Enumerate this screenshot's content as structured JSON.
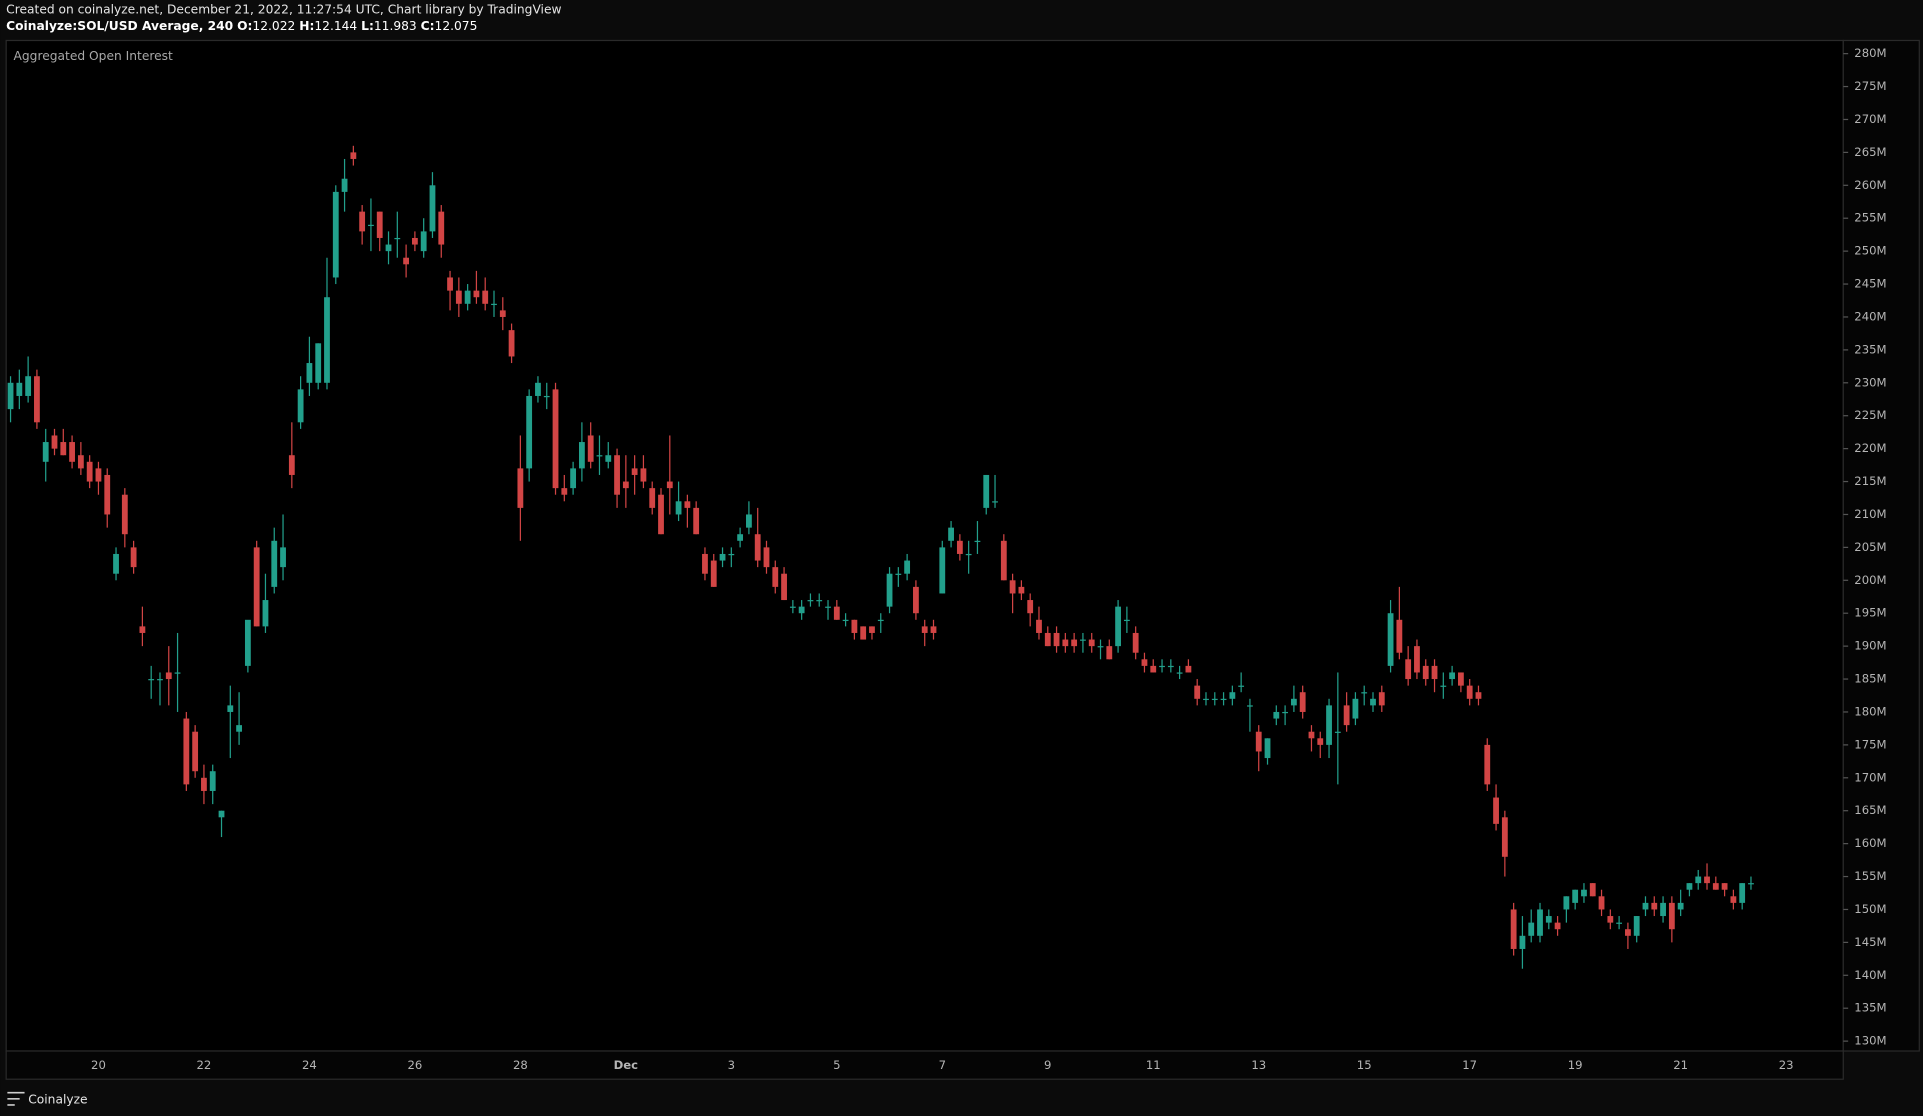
{
  "header": {
    "created": "Created on coinalyze.net, December 21, 2022, 11:27:54 UTC, Chart library by TradingView",
    "symbol": "Coinalyze:SOL/USD Average, 240",
    "ohlc": [
      {
        "label": "O:",
        "value": "12.022"
      },
      {
        "label": "H:",
        "value": "12.144"
      },
      {
        "label": "L:",
        "value": "11.983"
      },
      {
        "label": "C:",
        "value": "12.075"
      }
    ]
  },
  "footer": {
    "brand": "Coinalyze"
  },
  "chart_data": {
    "type": "candlestick",
    "title": "Aggregated Open Interest",
    "up_color": "#22a08c",
    "down_color": "#d24545",
    "grid": false,
    "ylim": [
      128.5,
      282
    ],
    "yticks": [
      {
        "value": 130,
        "label": "130M"
      },
      {
        "value": 135,
        "label": "135M"
      },
      {
        "value": 140,
        "label": "140M"
      },
      {
        "value": 145,
        "label": "145M"
      },
      {
        "value": 150,
        "label": "150M"
      },
      {
        "value": 155,
        "label": "155M"
      },
      {
        "value": 160,
        "label": "160M"
      },
      {
        "value": 165,
        "label": "165M"
      },
      {
        "value": 170,
        "label": "170M"
      },
      {
        "value": 175,
        "label": "175M"
      },
      {
        "value": 180,
        "label": "180M"
      },
      {
        "value": 185,
        "label": "185M"
      },
      {
        "value": 190,
        "label": "190M"
      },
      {
        "value": 195,
        "label": "195M"
      },
      {
        "value": 200,
        "label": "200M"
      },
      {
        "value": 205,
        "label": "205M"
      },
      {
        "value": 210,
        "label": "210M"
      },
      {
        "value": 215,
        "label": "215M"
      },
      {
        "value": 220,
        "label": "220M"
      },
      {
        "value": 225,
        "label": "225M"
      },
      {
        "value": 230,
        "label": "230M"
      },
      {
        "value": 235,
        "label": "235M"
      },
      {
        "value": 240,
        "label": "240M"
      },
      {
        "value": 245,
        "label": "245M"
      },
      {
        "value": 250,
        "label": "250M"
      },
      {
        "value": 255,
        "label": "255M"
      },
      {
        "value": 260,
        "label": "260M"
      },
      {
        "value": 265,
        "label": "265M"
      },
      {
        "value": 270,
        "label": "270M"
      },
      {
        "value": 275,
        "label": "275M"
      },
      {
        "value": 280,
        "label": "280M"
      }
    ],
    "categories": [
      null,
      null,
      null,
      null,
      null,
      null,
      null,
      null,
      null,
      null,
      "20",
      null,
      null,
      null,
      null,
      null,
      null,
      null,
      null,
      null,
      null,
      null,
      "22",
      null,
      null,
      null,
      null,
      null,
      null,
      null,
      null,
      null,
      null,
      null,
      "24",
      null,
      null,
      null,
      null,
      null,
      null,
      null,
      null,
      null,
      null,
      null,
      "26",
      null,
      null,
      null,
      null,
      null,
      null,
      null,
      null,
      null,
      null,
      null,
      "28",
      null,
      null,
      null,
      null,
      null,
      null,
      null,
      null,
      null,
      null,
      null,
      "Dec",
      null,
      null,
      null,
      null,
      null,
      null,
      null,
      null,
      null,
      null,
      null,
      "3",
      null,
      null,
      null,
      null,
      null,
      null,
      null,
      null,
      null,
      null,
      null,
      "5",
      null,
      null,
      null,
      null,
      null,
      null,
      null,
      null,
      null,
      null,
      null,
      "7",
      null,
      null,
      null,
      null,
      null,
      null,
      null,
      null,
      null,
      null,
      null,
      "9",
      null,
      null,
      null,
      null,
      null,
      null,
      null,
      null,
      null,
      null,
      null,
      "11",
      null,
      null,
      null,
      null,
      null,
      null,
      null,
      null,
      null,
      null,
      null,
      "13",
      null,
      null,
      null,
      null,
      null,
      null,
      null,
      null,
      null,
      null,
      null,
      "15",
      null,
      null,
      null,
      null,
      null,
      null,
      null,
      null,
      null,
      null,
      null,
      "17",
      null,
      null,
      null,
      null,
      null,
      null,
      null,
      null,
      null,
      null,
      null,
      "19",
      null,
      null,
      null,
      null,
      null,
      null,
      null,
      null,
      null,
      null,
      null,
      "21",
      null,
      null,
      null,
      null,
      null,
      null,
      null,
      null,
      null,
      null,
      null,
      "23",
      null,
      null,
      null,
      null,
      null,
      null
    ],
    "values": [
      [
        226,
        231,
        224,
        230
      ],
      [
        228,
        232,
        226,
        230
      ],
      [
        228,
        234,
        227,
        231
      ],
      [
        231,
        232,
        223,
        224
      ],
      [
        218,
        223,
        215,
        221
      ],
      [
        222,
        223,
        219,
        220
      ],
      [
        221,
        223,
        219,
        219
      ],
      [
        221,
        222,
        217,
        218
      ],
      [
        219,
        221,
        216,
        217
      ],
      [
        218,
        219,
        214,
        215
      ],
      [
        217,
        218,
        213,
        215
      ],
      [
        216,
        217,
        208,
        210
      ],
      [
        201,
        205,
        200,
        204
      ],
      [
        213,
        214,
        205,
        207
      ],
      [
        205,
        206,
        201,
        202
      ],
      [
        193,
        196,
        190,
        192
      ],
      [
        185,
        187,
        182,
        185
      ],
      [
        185,
        186,
        181,
        185
      ],
      [
        186,
        190,
        181,
        185
      ],
      [
        186,
        192,
        180,
        186
      ],
      [
        179,
        180,
        168,
        169
      ],
      [
        177,
        178,
        170,
        171
      ],
      [
        170,
        172,
        166,
        168
      ],
      [
        168,
        172,
        166,
        171
      ],
      [
        164,
        165,
        161,
        165
      ],
      [
        180,
        184,
        173,
        181
      ],
      [
        177,
        183,
        175,
        178
      ],
      [
        187,
        193,
        186,
        194
      ],
      [
        205,
        206,
        193,
        193
      ],
      [
        193,
        201,
        192,
        197
      ],
      [
        199,
        208,
        198,
        206
      ],
      [
        202,
        210,
        200,
        205
      ],
      [
        219,
        224,
        214,
        216
      ],
      [
        224,
        231,
        223,
        229
      ],
      [
        230,
        237,
        228,
        233
      ],
      [
        230,
        236,
        229,
        236
      ],
      [
        230,
        249,
        229,
        243
      ],
      [
        246,
        260,
        245,
        259
      ],
      [
        259,
        264,
        256,
        261
      ],
      [
        265,
        266,
        263,
        264
      ],
      [
        256,
        257,
        251,
        253
      ],
      [
        254,
        258,
        250,
        254
      ],
      [
        256,
        256,
        250,
        252
      ],
      [
        250,
        253,
        248,
        251
      ],
      [
        252,
        256,
        249,
        252
      ],
      [
        249,
        251,
        246,
        248
      ],
      [
        252,
        253,
        250,
        251
      ],
      [
        250,
        255,
        249,
        253
      ],
      [
        253,
        262,
        252,
        260
      ],
      [
        256,
        257,
        249,
        251
      ],
      [
        246,
        247,
        241,
        244
      ],
      [
        244,
        246,
        240,
        242
      ],
      [
        242,
        245,
        241,
        244
      ],
      [
        244,
        247,
        242,
        243
      ],
      [
        244,
        246,
        241,
        242
      ],
      [
        242,
        244,
        240,
        242
      ],
      [
        241,
        243,
        238,
        240
      ],
      [
        238,
        239,
        233,
        234
      ],
      [
        217,
        222,
        206,
        211
      ],
      [
        217,
        229,
        215,
        228
      ],
      [
        228,
        231,
        227,
        230
      ],
      [
        228,
        230,
        226,
        228
      ],
      [
        229,
        230,
        213,
        214
      ],
      [
        214,
        216,
        212,
        213
      ],
      [
        214,
        218,
        213,
        217
      ],
      [
        217,
        224,
        215,
        221
      ],
      [
        222,
        224,
        217,
        218
      ],
      [
        219,
        222,
        216,
        219
      ],
      [
        218,
        221,
        217,
        219
      ],
      [
        219,
        220,
        211,
        213
      ],
      [
        215,
        219,
        211,
        214
      ],
      [
        217,
        219,
        213,
        216
      ],
      [
        217,
        219,
        214,
        215
      ],
      [
        214,
        215,
        210,
        211
      ],
      [
        213,
        214,
        207,
        207
      ],
      [
        215,
        222,
        210,
        214
      ],
      [
        210,
        215,
        209,
        212
      ],
      [
        212,
        213,
        208,
        211
      ],
      [
        211,
        212,
        207,
        207
      ],
      [
        204,
        205,
        200,
        201
      ],
      [
        203,
        204,
        199,
        199
      ],
      [
        203,
        205,
        202,
        204
      ],
      [
        204,
        205,
        202,
        204
      ],
      [
        206,
        208,
        205,
        207
      ],
      [
        208,
        212,
        207,
        210
      ],
      [
        207,
        211,
        202,
        203
      ],
      [
        205,
        206,
        201,
        202
      ],
      [
        202,
        203,
        198,
        199
      ],
      [
        201,
        202,
        197,
        197
      ],
      [
        196,
        197,
        195,
        196
      ],
      [
        195,
        197,
        194,
        196
      ],
      [
        197,
        198,
        196,
        197
      ],
      [
        197,
        198,
        196,
        197
      ],
      [
        196,
        197,
        194,
        196
      ],
      [
        196,
        197,
        194,
        194
      ],
      [
        194,
        195,
        193,
        194
      ],
      [
        194,
        194,
        191,
        192
      ],
      [
        193,
        193,
        191,
        191
      ],
      [
        193,
        193,
        191,
        192
      ],
      [
        194,
        195,
        192,
        194
      ],
      [
        196,
        202,
        195,
        201
      ],
      [
        201,
        202,
        199,
        201
      ],
      [
        201,
        204,
        200,
        203
      ],
      [
        199,
        200,
        194,
        195
      ],
      [
        193,
        194,
        190,
        192
      ],
      [
        193,
        194,
        191,
        192
      ],
      [
        198,
        206,
        198,
        205
      ],
      [
        206,
        209,
        205,
        208
      ],
      [
        206,
        207,
        203,
        204
      ],
      [
        204,
        206,
        201,
        204
      ],
      [
        206,
        209,
        204,
        206
      ],
      [
        211,
        216,
        210,
        216
      ],
      [
        212,
        216,
        211,
        212
      ],
      [
        206,
        207,
        200,
        200
      ],
      [
        200,
        201,
        195,
        198
      ],
      [
        199,
        200,
        197,
        198
      ],
      [
        197,
        198,
        193,
        195
      ],
      [
        194,
        196,
        191,
        192
      ],
      [
        192,
        193,
        190,
        190
      ],
      [
        192,
        193,
        189,
        190
      ],
      [
        191,
        192,
        189,
        190
      ],
      [
        191,
        192,
        189,
        190
      ],
      [
        191,
        192,
        189,
        191
      ],
      [
        191,
        192,
        189,
        190
      ],
      [
        190,
        191,
        188,
        190
      ],
      [
        190,
        191,
        188,
        188
      ],
      [
        190,
        197,
        189,
        196
      ],
      [
        194,
        196,
        192,
        194
      ],
      [
        192,
        193,
        188,
        189
      ],
      [
        188,
        189,
        186,
        187
      ],
      [
        187,
        188,
        186,
        186
      ],
      [
        187,
        188,
        186,
        187
      ],
      [
        187,
        188,
        186,
        187
      ],
      [
        186,
        187,
        185,
        186
      ],
      [
        187,
        188,
        186,
        186
      ],
      [
        184,
        185,
        181,
        182
      ],
      [
        182,
        183,
        181,
        182
      ],
      [
        182,
        183,
        181,
        182
      ],
      [
        182,
        183,
        181,
        182
      ],
      [
        182,
        184,
        181,
        183
      ],
      [
        184,
        186,
        183,
        184
      ],
      [
        181,
        182,
        177,
        181
      ],
      [
        177,
        178,
        171,
        174
      ],
      [
        173,
        176,
        172,
        176
      ],
      [
        179,
        181,
        178,
        180
      ],
      [
        180,
        181,
        178,
        180
      ],
      [
        181,
        184,
        180,
        182
      ],
      [
        183,
        184,
        179,
        180
      ],
      [
        177,
        178,
        174,
        176
      ],
      [
        176,
        177,
        173,
        175
      ],
      [
        175,
        182,
        173,
        181
      ],
      [
        177,
        186,
        169,
        177
      ],
      [
        181,
        183,
        177,
        178
      ],
      [
        179,
        183,
        178,
        182
      ],
      [
        183,
        184,
        181,
        183
      ],
      [
        181,
        183,
        180,
        182
      ],
      [
        183,
        184,
        180,
        181
      ],
      [
        187,
        197,
        186,
        195
      ],
      [
        194,
        199,
        188,
        189
      ],
      [
        188,
        190,
        184,
        185
      ],
      [
        190,
        191,
        185,
        186
      ],
      [
        187,
        188,
        184,
        185
      ],
      [
        187,
        188,
        183,
        185
      ],
      [
        184,
        186,
        182,
        184
      ],
      [
        185,
        187,
        184,
        186
      ],
      [
        186,
        186,
        183,
        184
      ],
      [
        184,
        185,
        181,
        182
      ],
      [
        183,
        184,
        181,
        182
      ],
      [
        175,
        176,
        168,
        169
      ],
      [
        167,
        169,
        162,
        163
      ],
      [
        164,
        165,
        155,
        158
      ],
      [
        150,
        151,
        143,
        144
      ],
      [
        144,
        149,
        141,
        146
      ],
      [
        146,
        150,
        145,
        148
      ],
      [
        146,
        151,
        145,
        150
      ],
      [
        148,
        150,
        147,
        149
      ],
      [
        148,
        149,
        146,
        147
      ],
      [
        150,
        152,
        148,
        152
      ],
      [
        151,
        153,
        150,
        153
      ],
      [
        152,
        154,
        151,
        153
      ],
      [
        154,
        154,
        152,
        152
      ],
      [
        152,
        153,
        149,
        150
      ],
      [
        149,
        150,
        147,
        148
      ],
      [
        148,
        149,
        147,
        148
      ],
      [
        147,
        148,
        144,
        146
      ],
      [
        146,
        149,
        145,
        149
      ],
      [
        150,
        152,
        149,
        151
      ],
      [
        151,
        152,
        149,
        150
      ],
      [
        149,
        152,
        148,
        151
      ],
      [
        151,
        152,
        145,
        147
      ],
      [
        150,
        153,
        149,
        151
      ],
      [
        153,
        154,
        152,
        154
      ],
      [
        154,
        156,
        153,
        155
      ],
      [
        155,
        157,
        153,
        154
      ],
      [
        154,
        155,
        153,
        153
      ],
      [
        154,
        154,
        152,
        153
      ],
      [
        152,
        153,
        150,
        151
      ],
      [
        151,
        154,
        150,
        154
      ],
      [
        154,
        155,
        153,
        154
      ],
      null,
      null,
      null,
      null,
      null,
      null,
      null,
      null,
      null,
      null
    ]
  }
}
